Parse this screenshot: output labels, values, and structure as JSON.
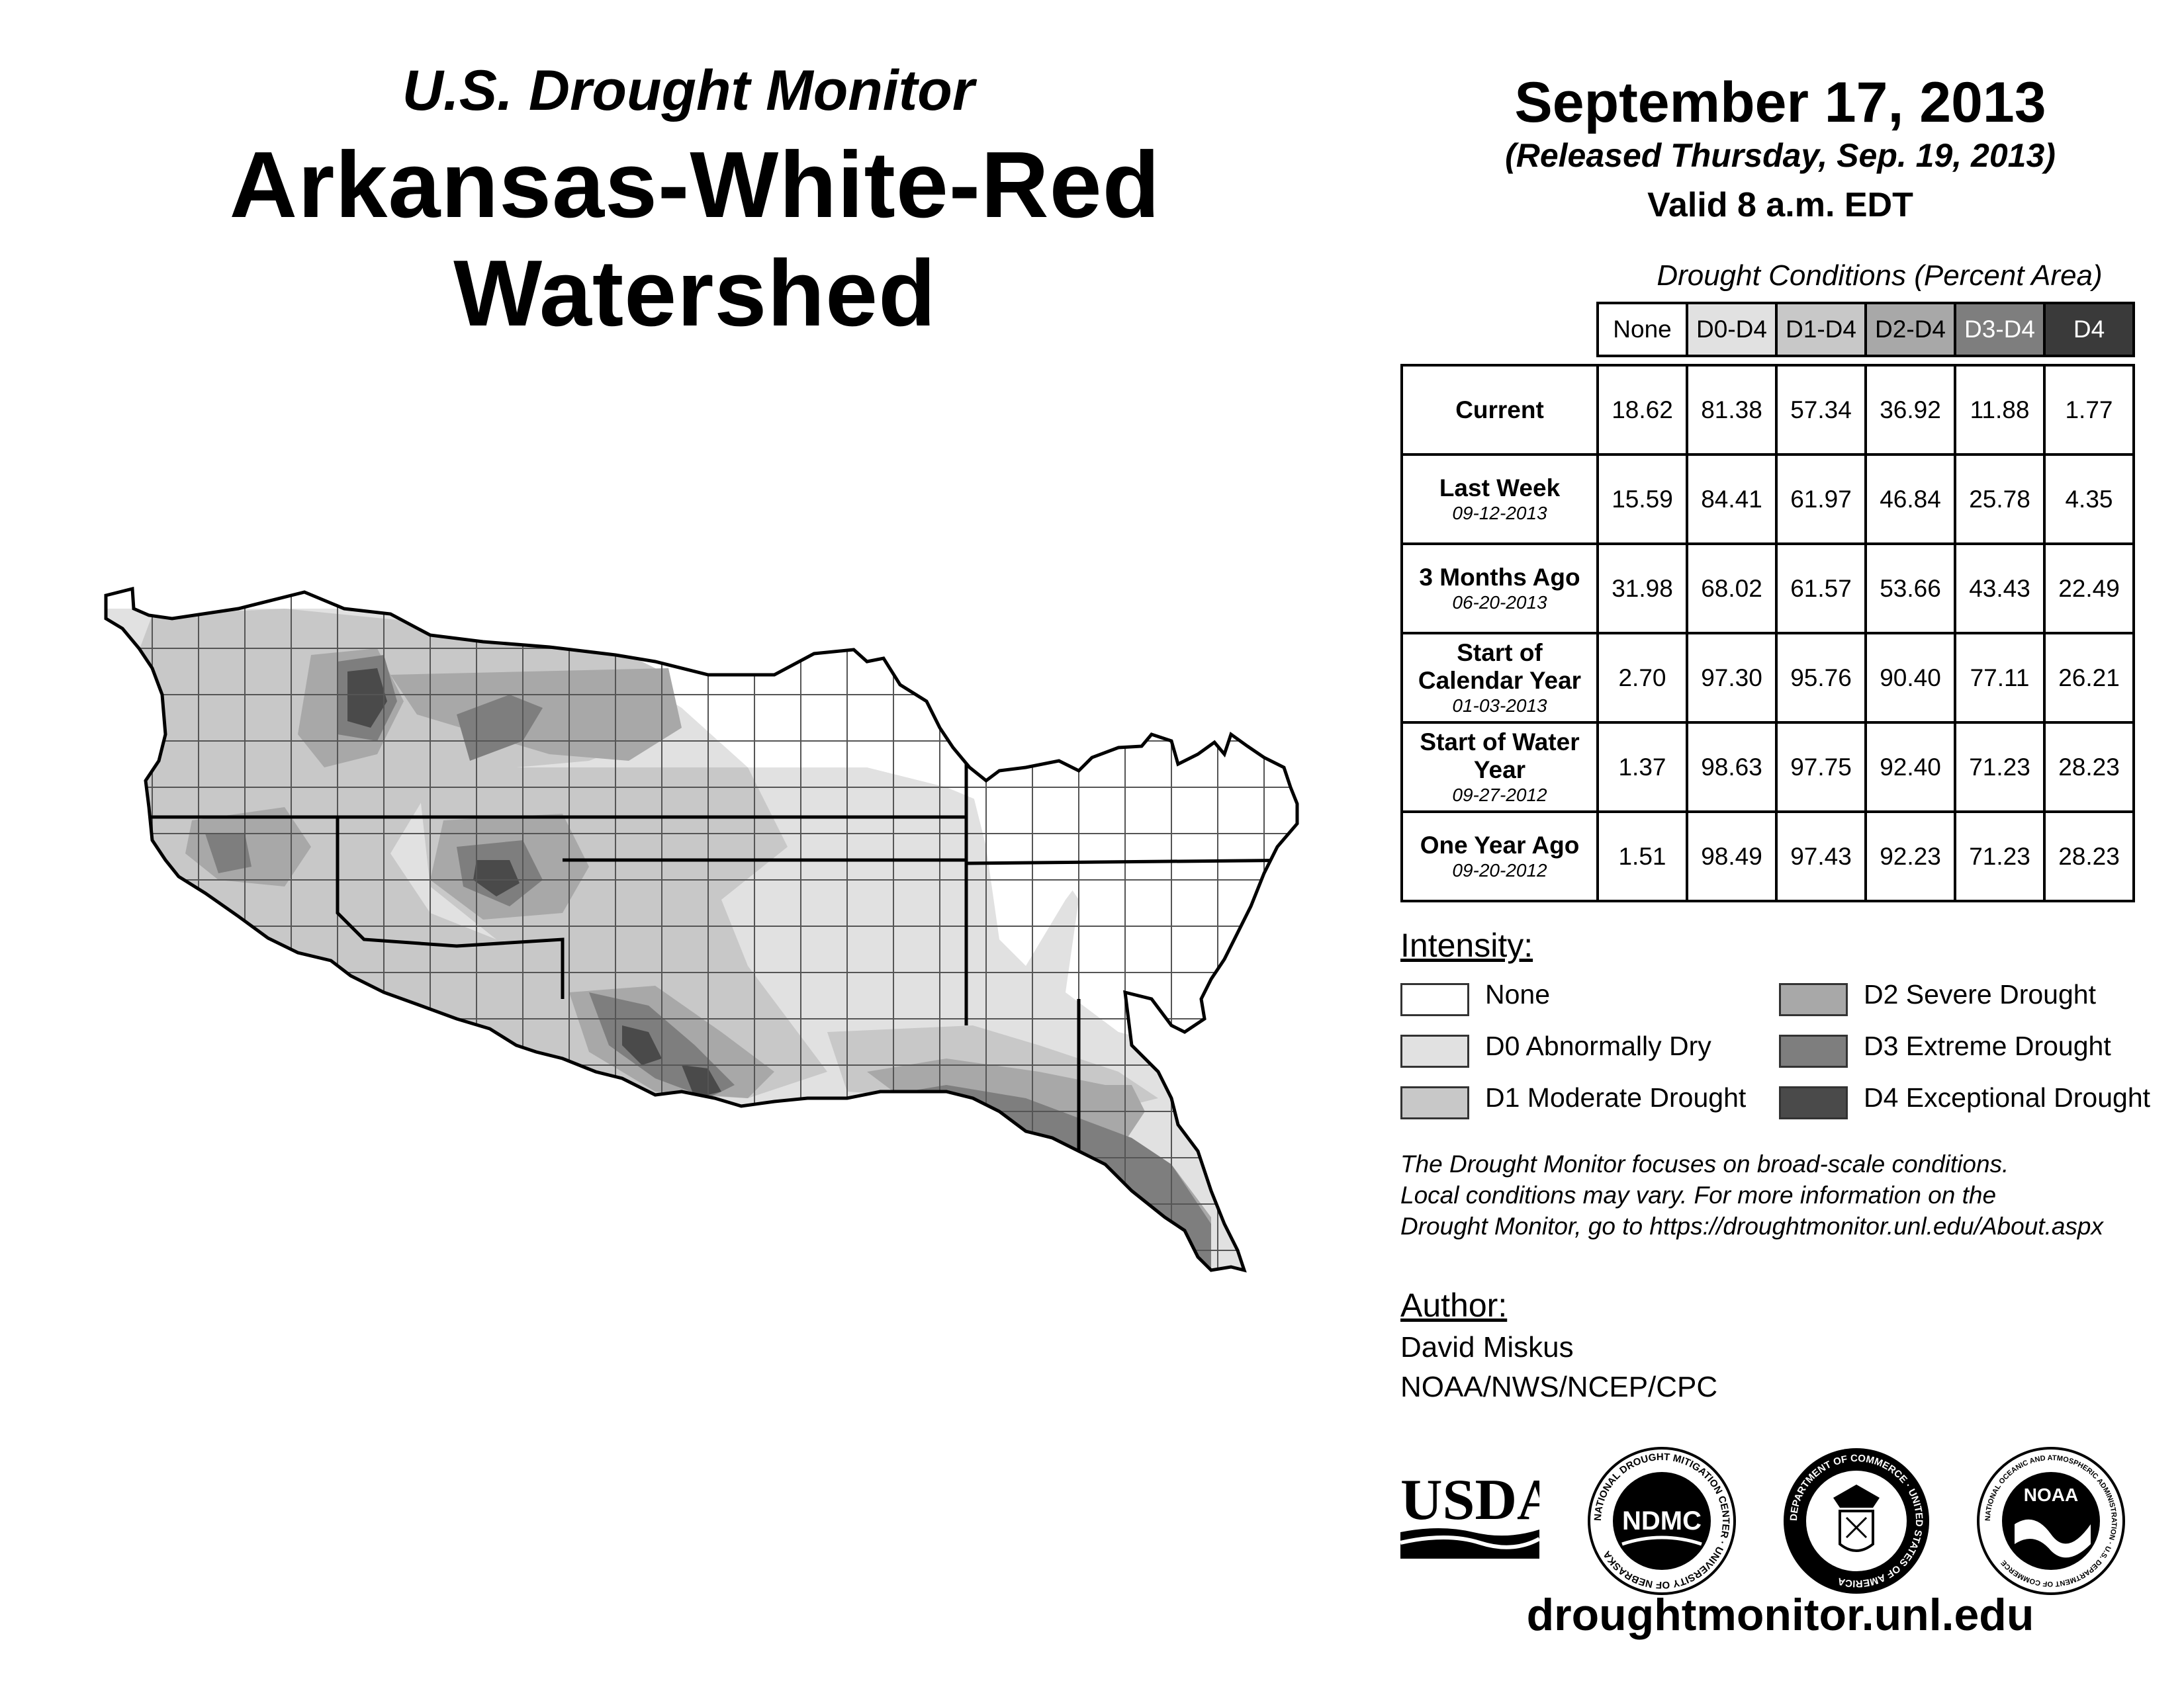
{
  "header": {
    "subtitle": "U.S. Drought Monitor",
    "title": "Arkansas-White-Red Watershed",
    "date": "September 17, 2013",
    "released": "(Released Thursday, Sep. 19, 2013)",
    "valid": "Valid 8 a.m. EDT"
  },
  "table": {
    "caption": "Drought Conditions (Percent Area)",
    "columns": [
      "None",
      "D0-D4",
      "D1-D4",
      "D2-D4",
      "D3-D4",
      "D4"
    ],
    "rows": [
      {
        "label": "Current",
        "date": "",
        "values": [
          "18.62",
          "81.38",
          "57.34",
          "36.92",
          "11.88",
          "1.77"
        ]
      },
      {
        "label": "Last Week",
        "date": "09-12-2013",
        "values": [
          "15.59",
          "84.41",
          "61.97",
          "46.84",
          "25.78",
          "4.35"
        ]
      },
      {
        "label": "3 Months Ago",
        "date": "06-20-2013",
        "values": [
          "31.98",
          "68.02",
          "61.57",
          "53.66",
          "43.43",
          "22.49"
        ]
      },
      {
        "label": "Start of Calendar Year",
        "date": "01-03-2013",
        "values": [
          "2.70",
          "97.30",
          "95.76",
          "90.40",
          "77.11",
          "26.21"
        ]
      },
      {
        "label": "Start of Water Year",
        "date": "09-27-2012",
        "values": [
          "1.37",
          "98.63",
          "97.75",
          "92.40",
          "71.23",
          "28.23"
        ]
      },
      {
        "label": "One Year Ago",
        "date": "09-20-2012",
        "values": [
          "1.51",
          "98.49",
          "97.43",
          "92.23",
          "71.23",
          "28.23"
        ]
      }
    ]
  },
  "legend": {
    "title": "Intensity:",
    "items": [
      {
        "label": "None",
        "color": "#ffffff"
      },
      {
        "label": "D0 Abnormally Dry",
        "color": "#e1e1e1"
      },
      {
        "label": "D1 Moderate Drought",
        "color": "#c8c8c8"
      },
      {
        "label": "D2 Severe Drought",
        "color": "#a8a8a8"
      },
      {
        "label": "D3 Extreme Drought",
        "color": "#7e7e7e"
      },
      {
        "label": "D4 Exceptional Drought",
        "color": "#4a4a4a"
      }
    ]
  },
  "note": [
    "The Drought Monitor focuses on broad-scale conditions.",
    "Local conditions may vary. For more information on the",
    "Drought Monitor, go to https://droughtmonitor.unl.edu/About.aspx"
  ],
  "author": {
    "title": "Author:",
    "name": "David Miskus",
    "org": "NOAA/NWS/NCEP/CPC"
  },
  "logos": {
    "usda": "USDA",
    "ndmc": "NDMC",
    "ndmc_ring": "NATIONAL DROUGHT MITIGATION CENTER · UNIVERSITY OF NEBRASKA",
    "doc_ring": "DEPARTMENT OF COMMERCE · UNITED STATES OF AMERICA",
    "noaa": "NOAA",
    "noaa_ring": "NATIONAL OCEANIC AND ATMOSPHERIC ADMINISTRATION · U.S. DEPARTMENT OF COMMERCE"
  },
  "site": "droughtmonitor.unl.edu",
  "header_colors": [
    "#ffffff",
    "#e1e1e1",
    "#c8c8c8",
    "#a8a8a8",
    "#7e7e7e",
    "#3a3a3a"
  ]
}
